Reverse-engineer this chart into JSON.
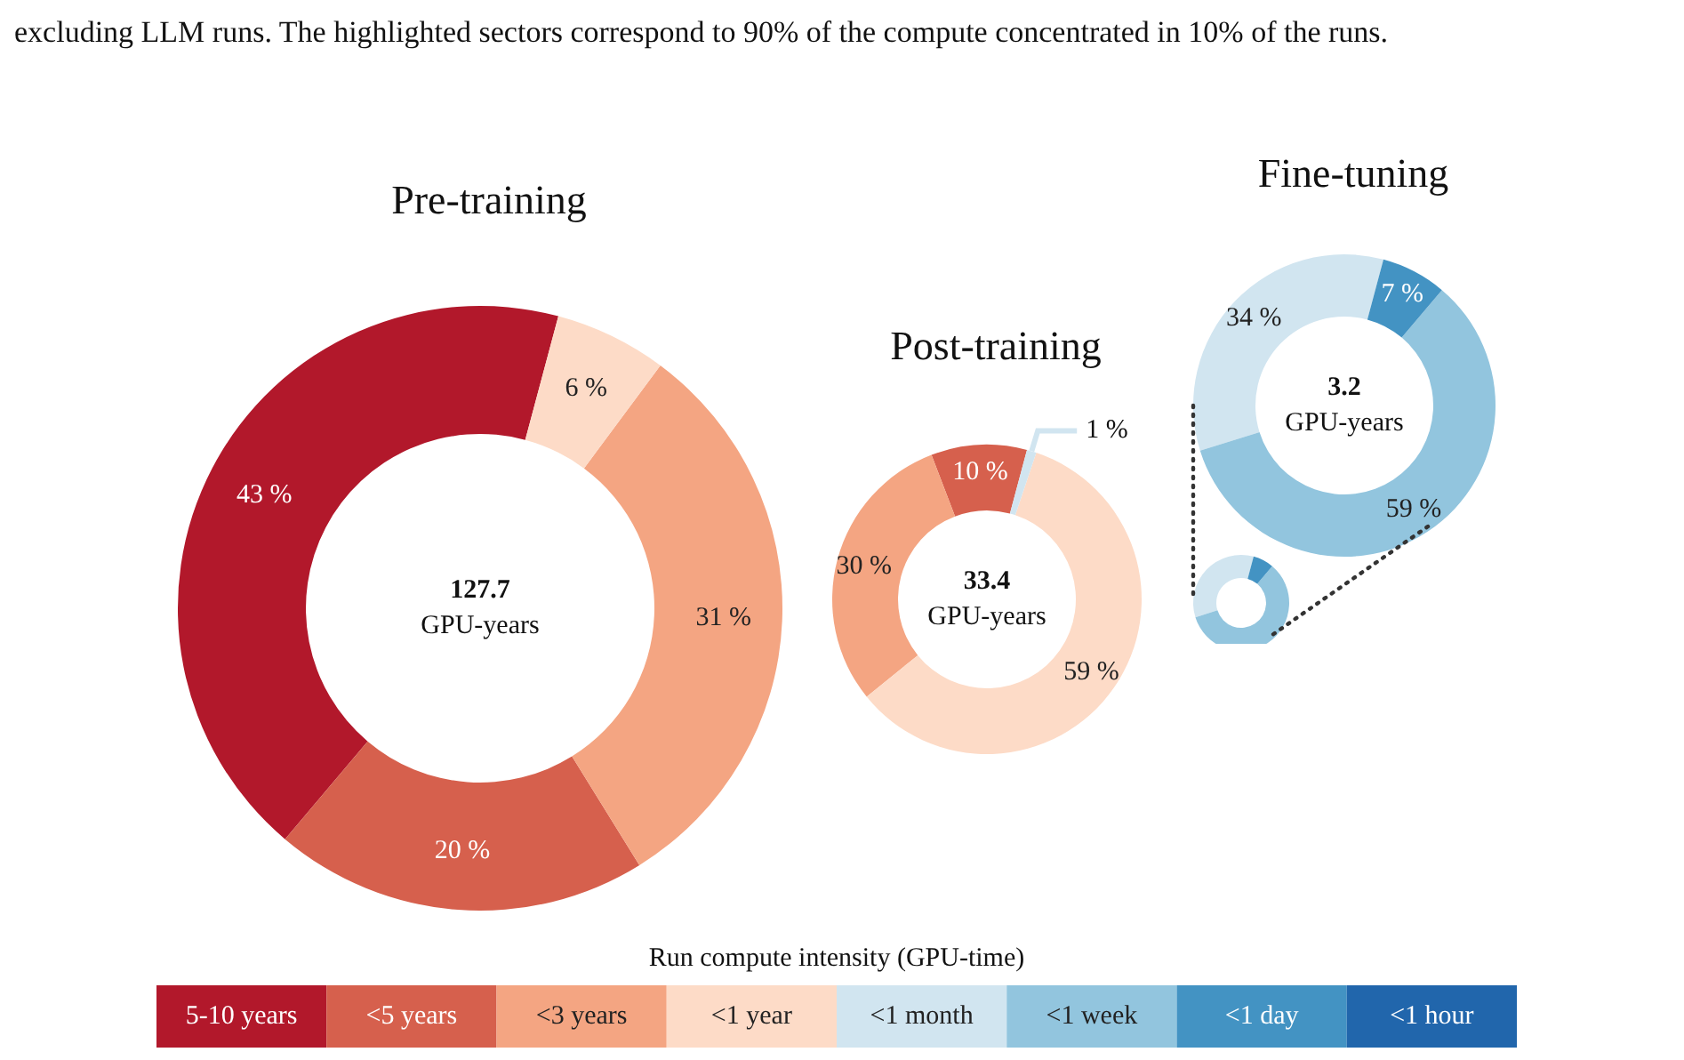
{
  "chart_data": [
    {
      "type": "donut",
      "title": "Pre-training",
      "categories": [
        null,
        null,
        null,
        null
      ],
      "values": [
        43,
        20,
        31,
        6
      ],
      "colors": [
        "#b2182b",
        "#d6604d",
        "#f4a582",
        "#fddbc7"
      ],
      "value_labels": [
        "43 %",
        "20 %",
        "31 %",
        "6 %"
      ],
      "annotations": [
        "excluding LLM runs. The highlighted sectors correspond to 90% of the compute concentrated in 10% of the runs.",
        "127.7",
        "GPU-years"
      ]
    },
    {
      "type": "donut",
      "title": "Post-training",
      "categories": [
        null,
        null,
        null,
        null
      ],
      "values": [
        10,
        30,
        59,
        1
      ],
      "colors": [
        "#d6604d",
        "#f4a582",
        "#fddbc7",
        "#d1e5f0"
      ],
      "value_labels": [
        "10 %",
        "30 %",
        "59 %",
        "1 %"
      ],
      "annotations": [
        "33.4",
        "GPU-years"
      ]
    },
    {
      "type": "donut",
      "title": "Fine-tuning",
      "categories": [
        null,
        null,
        null
      ],
      "values": [
        34,
        59,
        7
      ],
      "colors": [
        "#d1e5f0",
        "#92c5de",
        "#4393c3"
      ],
      "value_labels": [
        "34 %",
        "59 %",
        "7 %"
      ],
      "annotations": [
        "3.2",
        "GPU-years"
      ]
    },
    {
      "type": "other",
      "legend_title": "Run compute intensity (GPU-time)",
      "categories": [
        "5-10 years",
        "<5 years",
        "<3 years",
        "<1 year",
        "<1 month",
        "<1 week",
        "<1 day",
        "<1 hour"
      ],
      "colors": [
        "#b2182b",
        "#d6604d",
        "#f4a582",
        "#fddbc7",
        "#d1e5f0",
        "#92c5de",
        "#4393c3",
        "#2166ac"
      ]
    }
  ]
}
